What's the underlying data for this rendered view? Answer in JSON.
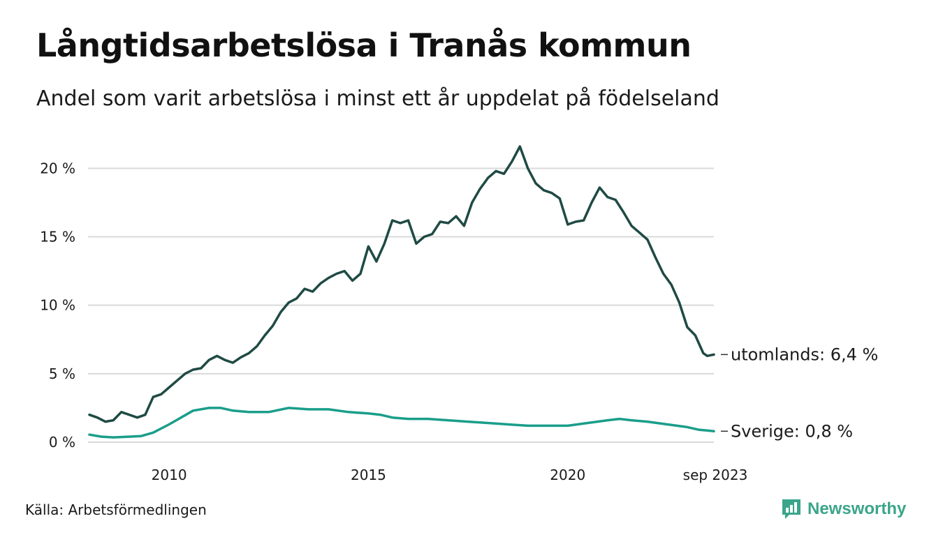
{
  "header": {
    "title": "Långtidsarbetslösa i Tranås kommun",
    "subtitle": "Andel som varit arbetslösa i minst ett år uppdelat på födelseland"
  },
  "footer": {
    "source": "Källa: Arbetsförmedlingen",
    "brand": "Newsworthy",
    "brand_icon": "newsworthy-logo-icon"
  },
  "colors": {
    "utomlands": "#1f4a44",
    "sverige": "#1a9e8a",
    "grid": "#d9d9d9",
    "brand": "#3aa58a"
  },
  "chart_data": {
    "type": "line",
    "title": "Långtidsarbetslösa i Tranås kommun",
    "xlabel": "",
    "ylabel": "",
    "x_range": [
      2008.0,
      2023.667
    ],
    "ylim": [
      0,
      21.7
    ],
    "y_ticks": [
      0,
      5,
      10,
      15,
      20
    ],
    "y_tick_labels": [
      "0 %",
      "5 %",
      "10 %",
      "15 %",
      "20 %"
    ],
    "x_ticks": [
      2010,
      2015,
      2020,
      2023.667
    ],
    "x_tick_labels": [
      "2010",
      "2015",
      "2020",
      "sep 2023"
    ],
    "grid": true,
    "series": [
      {
        "name": "utomlands",
        "end_label": "utomlands: 6,4 %",
        "points": [
          [
            2008.0,
            2.0
          ],
          [
            2008.2,
            1.8
          ],
          [
            2008.4,
            1.5
          ],
          [
            2008.6,
            1.6
          ],
          [
            2008.8,
            2.2
          ],
          [
            2009.0,
            2.0
          ],
          [
            2009.2,
            1.8
          ],
          [
            2009.4,
            2.0
          ],
          [
            2009.6,
            3.3
          ],
          [
            2009.8,
            3.5
          ],
          [
            2010.0,
            4.0
          ],
          [
            2010.2,
            4.5
          ],
          [
            2010.4,
            5.0
          ],
          [
            2010.6,
            5.3
          ],
          [
            2010.8,
            5.4
          ],
          [
            2011.0,
            6.0
          ],
          [
            2011.2,
            6.3
          ],
          [
            2011.4,
            6.0
          ],
          [
            2011.6,
            5.8
          ],
          [
            2011.8,
            6.2
          ],
          [
            2012.0,
            6.5
          ],
          [
            2012.2,
            7.0
          ],
          [
            2012.4,
            7.8
          ],
          [
            2012.6,
            8.5
          ],
          [
            2012.8,
            9.5
          ],
          [
            2013.0,
            10.2
          ],
          [
            2013.2,
            10.5
          ],
          [
            2013.4,
            11.2
          ],
          [
            2013.6,
            11.0
          ],
          [
            2013.8,
            11.6
          ],
          [
            2014.0,
            12.0
          ],
          [
            2014.2,
            12.3
          ],
          [
            2014.4,
            12.5
          ],
          [
            2014.6,
            11.8
          ],
          [
            2014.8,
            12.3
          ],
          [
            2015.0,
            14.3
          ],
          [
            2015.2,
            13.2
          ],
          [
            2015.4,
            14.5
          ],
          [
            2015.6,
            16.2
          ],
          [
            2015.8,
            16.0
          ],
          [
            2016.0,
            16.2
          ],
          [
            2016.2,
            14.5
          ],
          [
            2016.4,
            15.0
          ],
          [
            2016.6,
            15.2
          ],
          [
            2016.8,
            16.1
          ],
          [
            2017.0,
            16.0
          ],
          [
            2017.2,
            16.5
          ],
          [
            2017.4,
            15.8
          ],
          [
            2017.6,
            17.5
          ],
          [
            2017.8,
            18.5
          ],
          [
            2018.0,
            19.3
          ],
          [
            2018.2,
            19.8
          ],
          [
            2018.4,
            19.6
          ],
          [
            2018.6,
            20.5
          ],
          [
            2018.8,
            21.6
          ],
          [
            2019.0,
            20.0
          ],
          [
            2019.2,
            18.9
          ],
          [
            2019.4,
            18.4
          ],
          [
            2019.6,
            18.2
          ],
          [
            2019.8,
            17.8
          ],
          [
            2020.0,
            15.9
          ],
          [
            2020.2,
            16.1
          ],
          [
            2020.4,
            16.2
          ],
          [
            2020.6,
            17.5
          ],
          [
            2020.8,
            18.6
          ],
          [
            2021.0,
            17.9
          ],
          [
            2021.2,
            17.7
          ],
          [
            2021.4,
            16.8
          ],
          [
            2021.6,
            15.8
          ],
          [
            2021.8,
            15.3
          ],
          [
            2022.0,
            14.8
          ],
          [
            2022.2,
            13.5
          ],
          [
            2022.4,
            12.3
          ],
          [
            2022.6,
            11.5
          ],
          [
            2022.8,
            10.2
          ],
          [
            2023.0,
            8.4
          ],
          [
            2023.2,
            7.8
          ],
          [
            2023.4,
            6.5
          ],
          [
            2023.5,
            6.3
          ],
          [
            2023.667,
            6.4
          ]
        ]
      },
      {
        "name": "Sverige",
        "end_label": "Sverige: 0,8 %",
        "points": [
          [
            2008.0,
            0.55
          ],
          [
            2008.3,
            0.4
          ],
          [
            2008.6,
            0.35
          ],
          [
            2009.0,
            0.4
          ],
          [
            2009.3,
            0.45
          ],
          [
            2009.6,
            0.7
          ],
          [
            2010.0,
            1.3
          ],
          [
            2010.3,
            1.8
          ],
          [
            2010.6,
            2.3
          ],
          [
            2011.0,
            2.5
          ],
          [
            2011.3,
            2.5
          ],
          [
            2011.6,
            2.3
          ],
          [
            2012.0,
            2.2
          ],
          [
            2012.5,
            2.2
          ],
          [
            2013.0,
            2.5
          ],
          [
            2013.5,
            2.4
          ],
          [
            2014.0,
            2.4
          ],
          [
            2014.5,
            2.2
          ],
          [
            2015.0,
            2.1
          ],
          [
            2015.3,
            2.0
          ],
          [
            2015.6,
            1.8
          ],
          [
            2016.0,
            1.7
          ],
          [
            2016.5,
            1.7
          ],
          [
            2017.0,
            1.6
          ],
          [
            2017.5,
            1.5
          ],
          [
            2018.0,
            1.4
          ],
          [
            2018.5,
            1.3
          ],
          [
            2019.0,
            1.2
          ],
          [
            2019.5,
            1.2
          ],
          [
            2020.0,
            1.2
          ],
          [
            2020.5,
            1.4
          ],
          [
            2021.0,
            1.6
          ],
          [
            2021.3,
            1.7
          ],
          [
            2021.6,
            1.6
          ],
          [
            2022.0,
            1.5
          ],
          [
            2022.5,
            1.3
          ],
          [
            2023.0,
            1.1
          ],
          [
            2023.3,
            0.9
          ],
          [
            2023.5,
            0.85
          ],
          [
            2023.667,
            0.8
          ]
        ]
      }
    ]
  }
}
